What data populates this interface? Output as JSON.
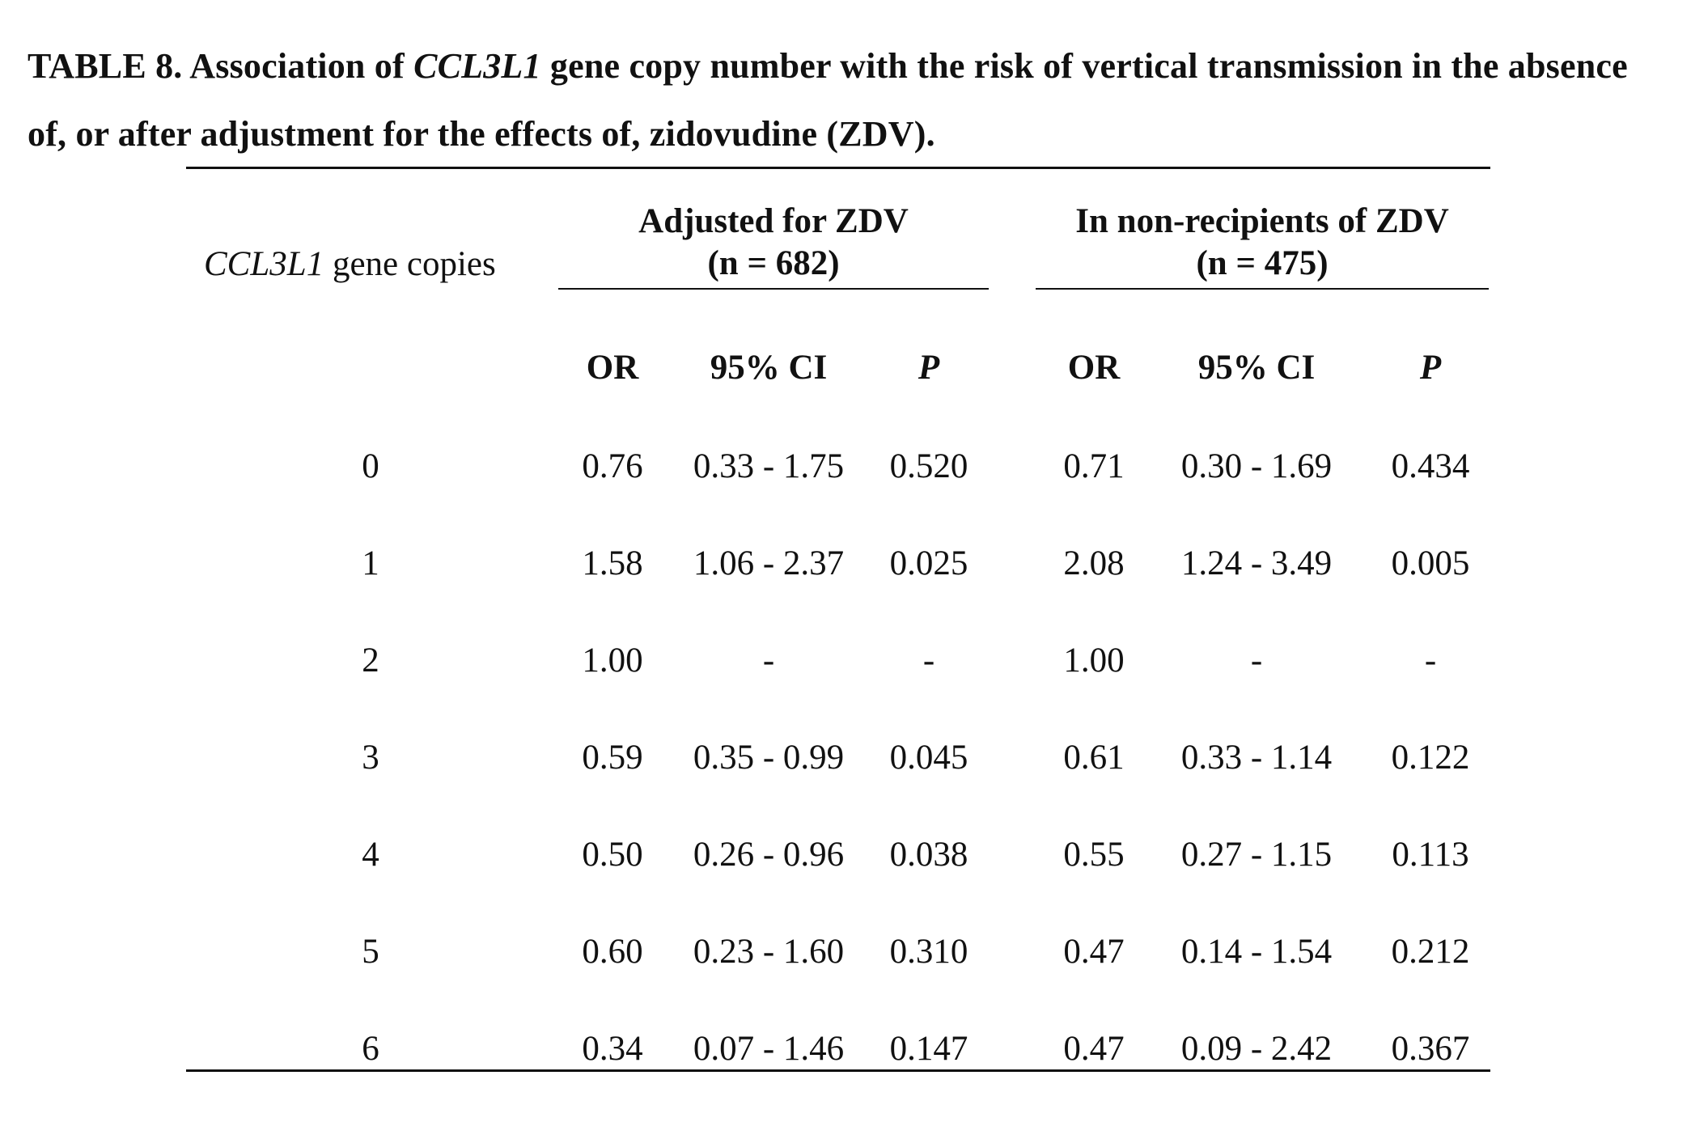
{
  "caption": {
    "prefix": "TABLE 8.  Association of ",
    "gene": "CCL3L1",
    "rest": " gene copy number with the risk of vertical transmission in the absence of, or after adjustment for the effects of, zidovudine (ZDV)."
  },
  "stub_header": {
    "gene": "CCL3L1",
    "rest": " gene copies"
  },
  "groups": [
    {
      "title": "Adjusted for ZDV",
      "n": "(n = 682)"
    },
    {
      "title": "In non-recipients of ZDV",
      "n": "(n = 475)"
    }
  ],
  "columns": [
    "OR",
    "95% CI",
    "P",
    "OR",
    "95% CI",
    "P"
  ],
  "rows": [
    {
      "copies": "0",
      "cells": [
        "0.76",
        "0.33 - 1.75",
        "0.520",
        "0.71",
        "0.30 - 1.69",
        "0.434"
      ]
    },
    {
      "copies": "1",
      "cells": [
        "1.58",
        "1.06 - 2.37",
        "0.025",
        "2.08",
        "1.24 - 3.49",
        "0.005"
      ]
    },
    {
      "copies": "2",
      "cells": [
        "1.00",
        "-",
        "-",
        "1.00",
        "-",
        "-"
      ]
    },
    {
      "copies": "3",
      "cells": [
        "0.59",
        "0.35 - 0.99",
        "0.045",
        "0.61",
        "0.33 - 1.14",
        "0.122"
      ]
    },
    {
      "copies": "4",
      "cells": [
        "0.50",
        "0.26 - 0.96",
        "0.038",
        "0.55",
        "0.27 - 1.15",
        "0.113"
      ]
    },
    {
      "copies": "5",
      "cells": [
        "0.60",
        "0.23 - 1.60",
        "0.310",
        "0.47",
        "0.14 - 1.54",
        "0.212"
      ]
    },
    {
      "copies": "6",
      "cells": [
        "0.34",
        "0.07 - 1.46",
        "0.147",
        "0.47",
        "0.09 - 2.42",
        "0.367"
      ]
    }
  ]
}
